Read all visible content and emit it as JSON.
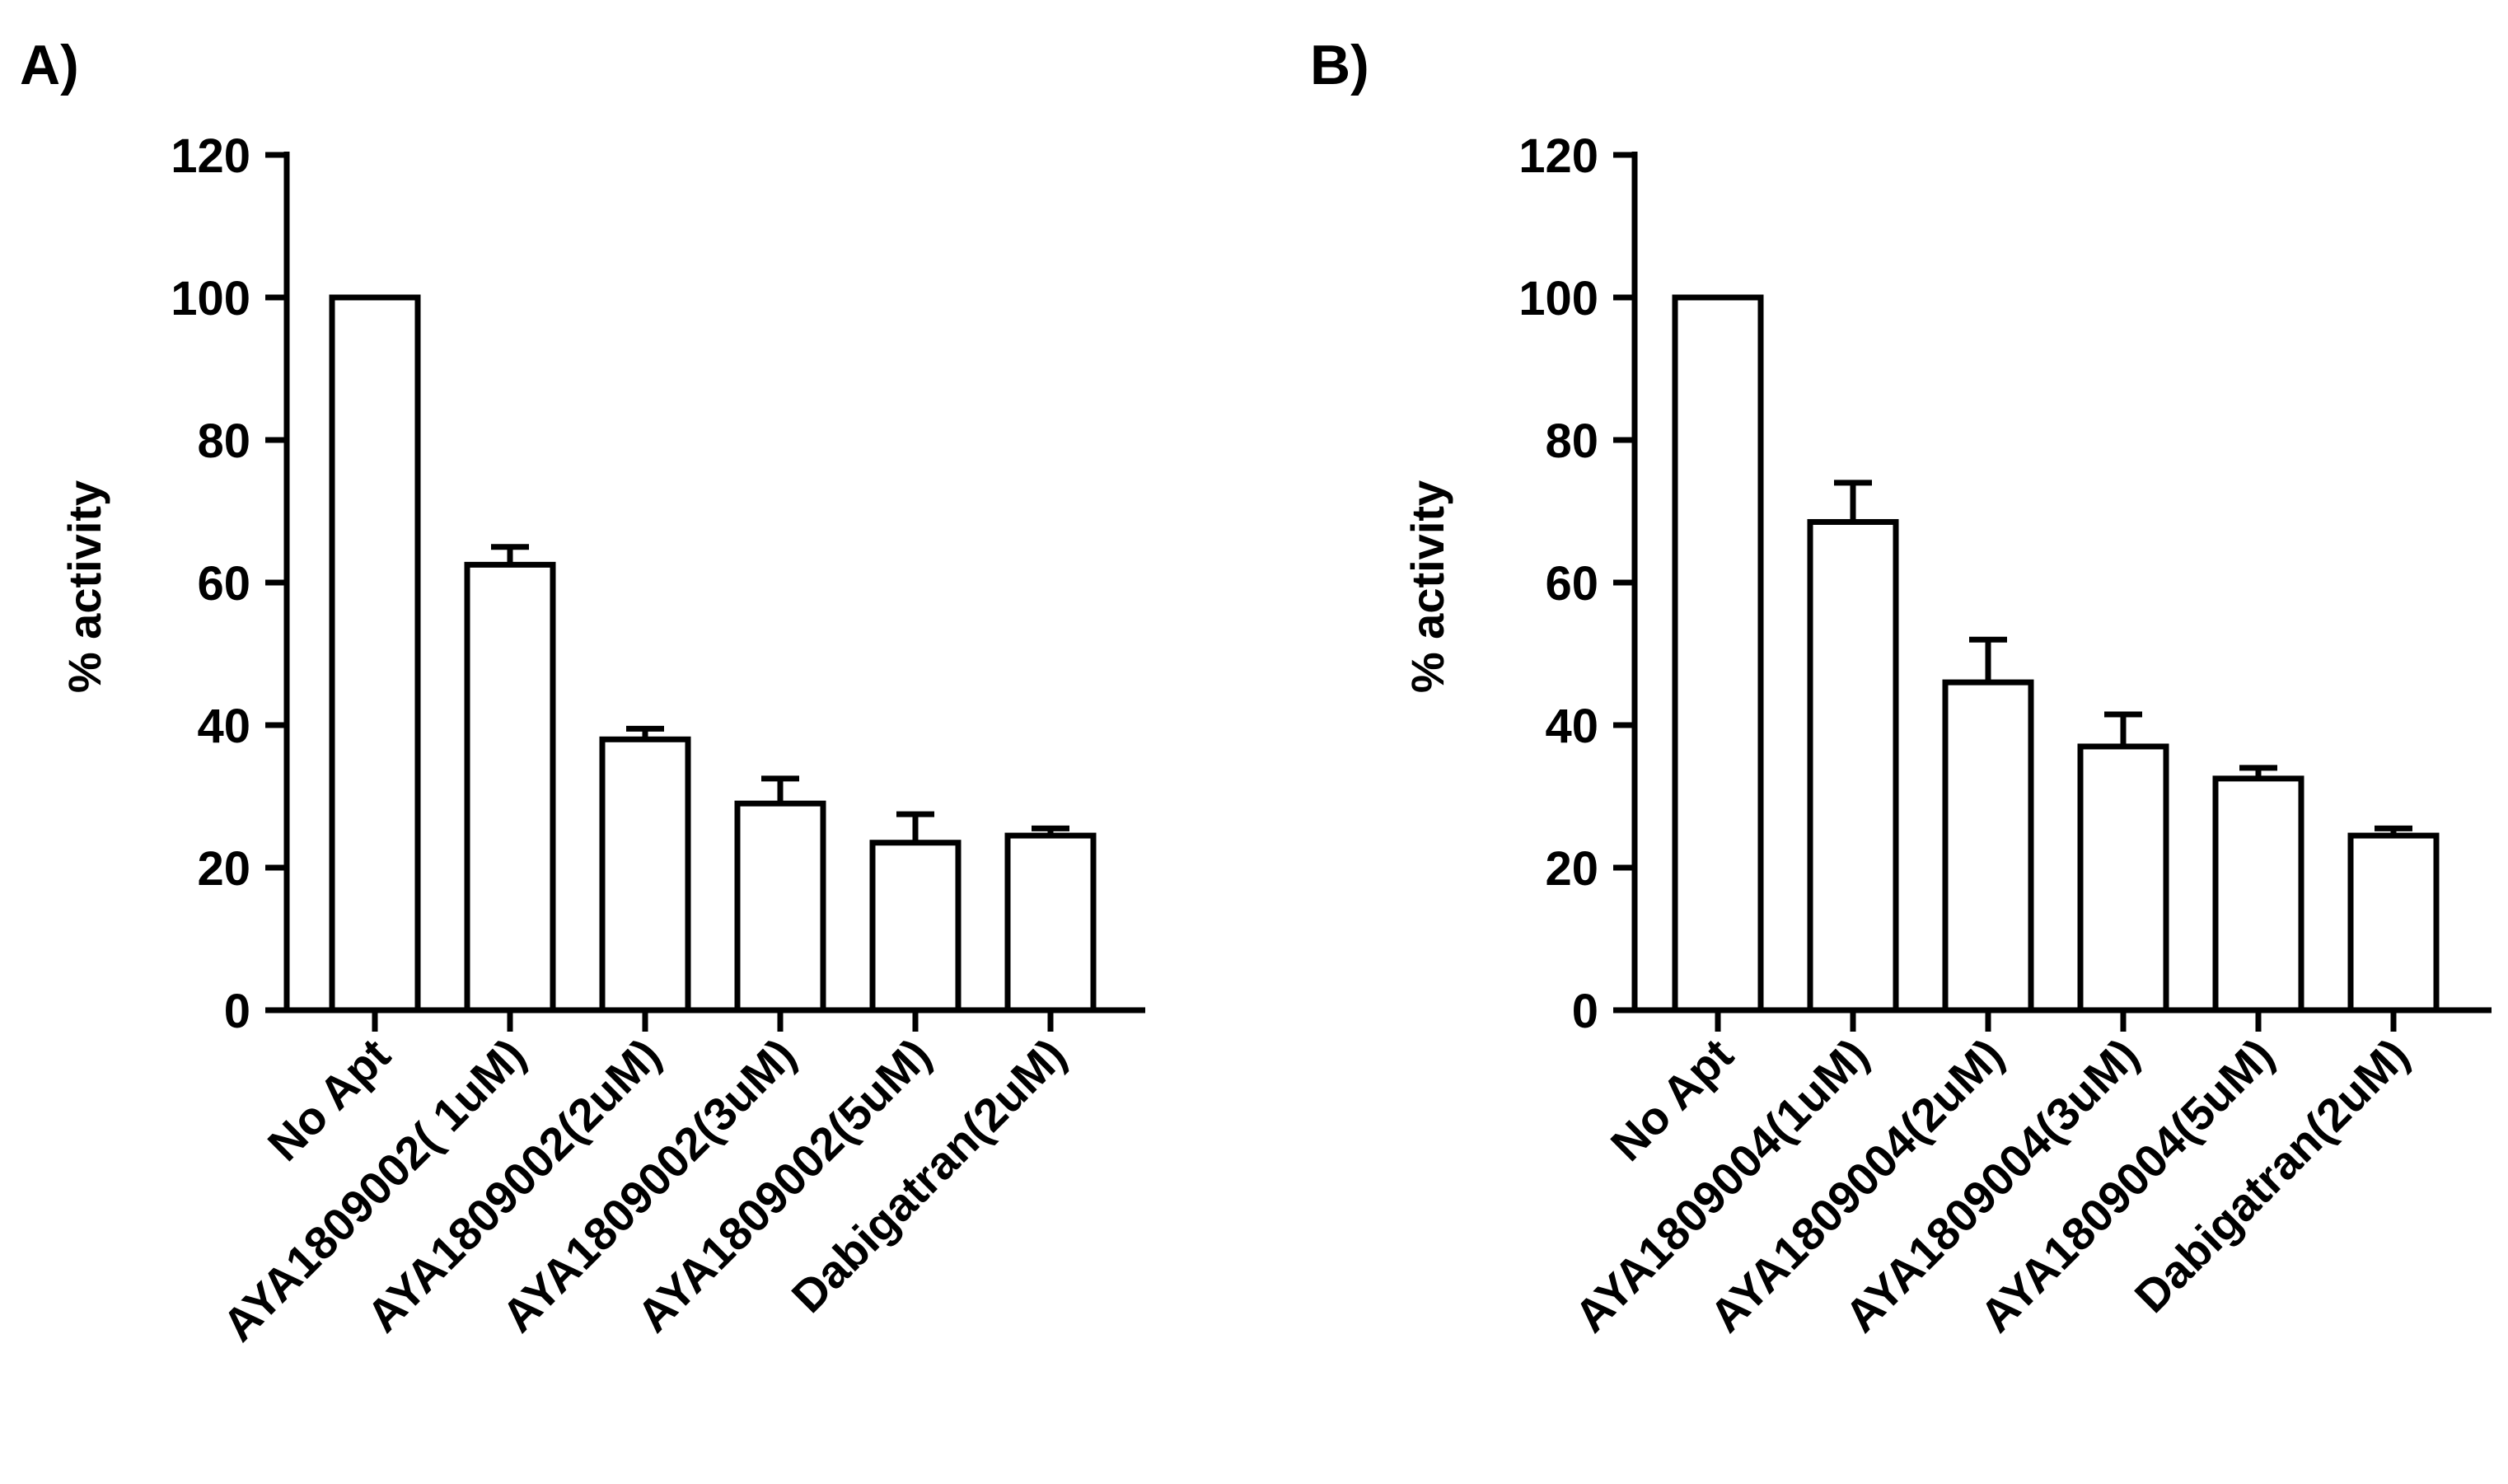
{
  "chart_data": [
    {
      "panel": "A)",
      "type": "bar",
      "ylabel": "% activity",
      "ylim": [
        0,
        120
      ],
      "yticks": [
        "0",
        "20",
        "40",
        "60",
        "80",
        "100",
        "120"
      ],
      "categories": [
        "No Apt",
        "AYA1809002( 1uM)",
        "AYA1809002(2uM)",
        "AYA1809002(3uM)",
        "AYA1809002(5uM)",
        "Dabigatran(2uM)"
      ],
      "values": [
        100,
        62.5,
        38,
        29,
        23.5,
        24.5
      ],
      "errors": [
        0,
        2.5,
        1.5,
        3.5,
        4,
        1
      ]
    },
    {
      "panel": "B)",
      "type": "bar",
      "ylabel": "% activity",
      "ylim": [
        0,
        120
      ],
      "yticks": [
        "0",
        "20",
        "40",
        "60",
        "80",
        "100",
        "120"
      ],
      "categories": [
        "No Apt",
        "AYA1809004(1uM)",
        "AYA1809004(2uM)",
        "AYA1809004(3uM)",
        "AYA1809004(5uM)",
        "Dabigatran(2uM)"
      ],
      "values": [
        100,
        68.5,
        46,
        37,
        32.5,
        24.5
      ],
      "errors": [
        0,
        5.5,
        6,
        4.5,
        1.5,
        1
      ]
    }
  ],
  "colors": {
    "stroke": "#000000",
    "bar_fill": "#ffffff",
    "background": "#ffffff"
  }
}
